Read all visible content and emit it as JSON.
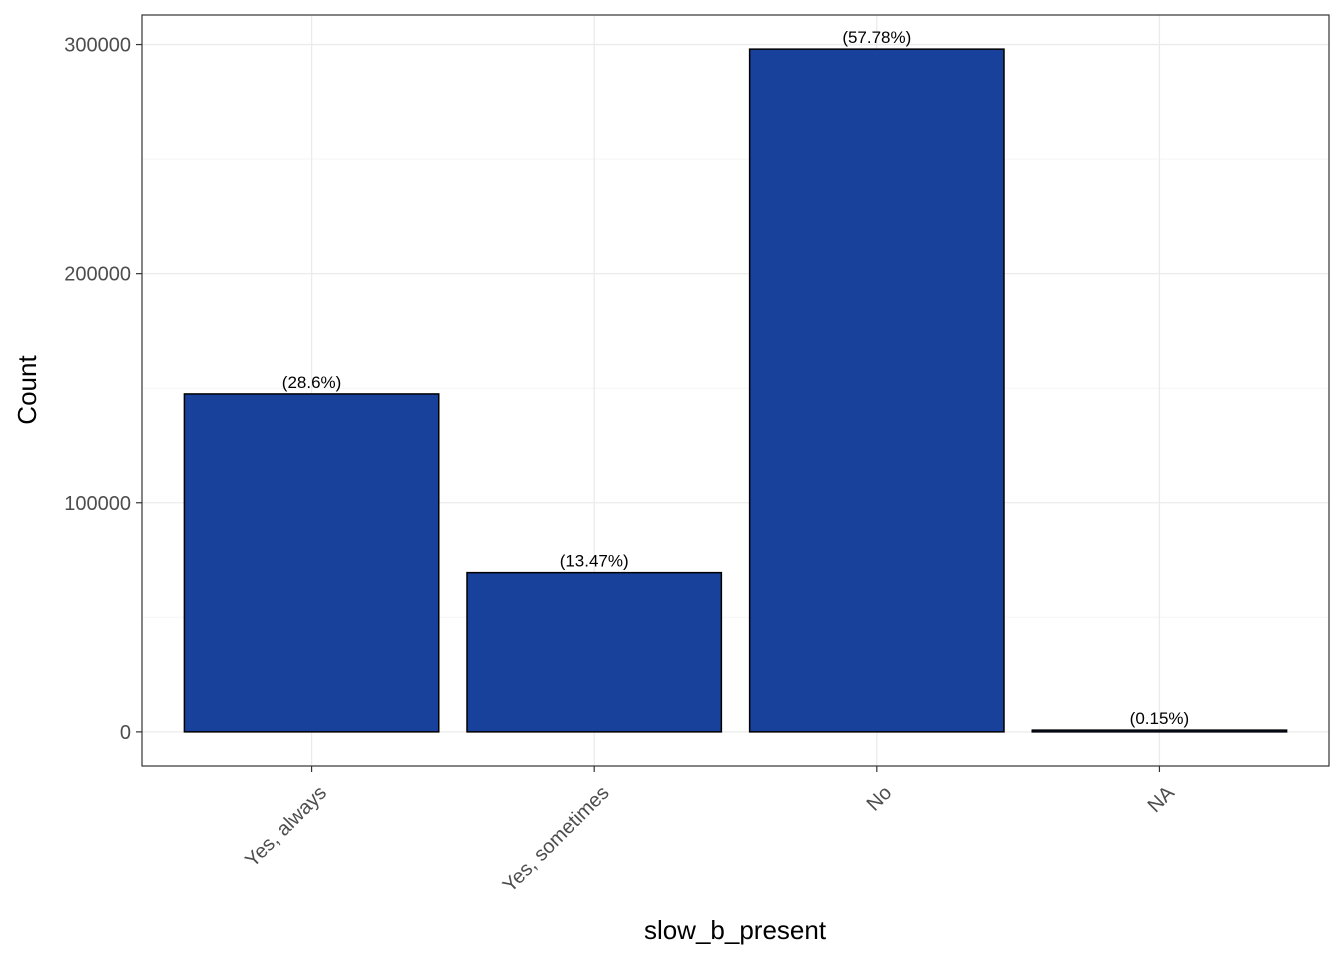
{
  "chart_data": {
    "type": "bar",
    "title": "",
    "xlabel": "slow_b_present",
    "ylabel": "Count",
    "categories": [
      "Yes, always",
      "Yes, sometimes",
      "No",
      "NA"
    ],
    "values": [
      147500,
      69500,
      298000,
      760
    ],
    "data_labels": [
      "(28.6%)",
      "(13.47%)",
      "(57.78%)",
      "(0.15%)"
    ],
    "yticks": [
      0,
      100000,
      200000,
      300000
    ],
    "ytick_labels": [
      "0",
      "100000",
      "200000",
      "300000"
    ],
    "ylim": [
      -14900,
      312900
    ],
    "grid": true,
    "legend": "none",
    "colors": {
      "bar_fill": "#17419A",
      "bar_stroke": "#000000",
      "grid_major": "#EBEBEB",
      "grid_minor": "#F5F5F5",
      "panel_border": "#333333"
    }
  }
}
